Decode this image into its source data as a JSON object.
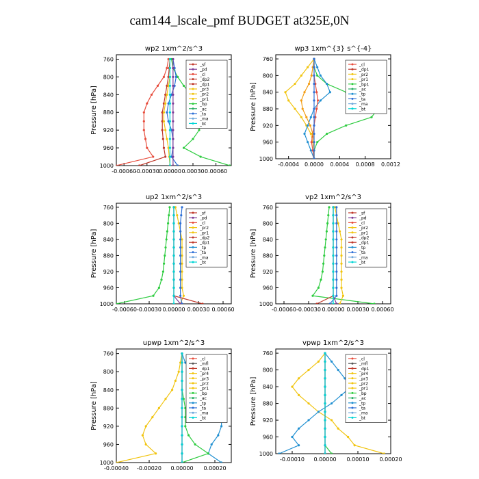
{
  "page_title": "cam144_lscale_pmf  BUDGET at325E,0N",
  "colors": {
    "sf": "#c0392b",
    "pd": "#7d3c98",
    "cl": "#e74c3c",
    "dp": "#c0392b",
    "pr": "#f1c40f",
    "bp": "#2ecc40",
    "ac": "#27ae60",
    "ta": "#2d6fd6",
    "tp": "#1f8fd1",
    "ma": "#6fa8dc",
    "bt": "#00d5d5",
    "mt": "#8e24aa"
  },
  "chart_data": [
    {
      "type": "line",
      "title": "wp2  1xm^2/s^3",
      "ylabel": "Pressure [hPa]",
      "ylim": [
        1000,
        750
      ],
      "yticks": [
        "760",
        "800",
        "840",
        "880",
        "920",
        "960",
        "1000"
      ],
      "xlim": [
        -0.0007,
        0.0008
      ],
      "xticks": [
        {
          "v": -0.0006,
          "label": "-0.00060"
        },
        {
          "v": -0.0003,
          "label": "-0.00030"
        },
        {
          "v": 0,
          "label": "0.00000"
        },
        {
          "v": 0.0003,
          "label": "0.00030"
        },
        {
          "v": 0.0006,
          "label": "0.00060"
        }
      ],
      "legend": [
        "_sf",
        "_pd",
        "_cl",
        "_dp2",
        "_dp1",
        "_pr3",
        "_pr2",
        "_pr1",
        "_bp",
        "_ac",
        "_ta",
        "_ma",
        "_bt"
      ],
      "pressure": [
        760,
        780,
        800,
        820,
        840,
        860,
        880,
        900,
        920,
        940,
        960,
        980,
        1000
      ],
      "series": [
        {
          "name": "_cl",
          "color": "#e74c3c",
          "values": [
            -2e-05,
            -4e-05,
            -8e-05,
            -0.00016,
            -0.00024,
            -0.0003,
            -0.00034,
            -0.00034,
            -0.00034,
            -0.00032,
            -0.0003,
            -0.00022,
            -0.0007
          ]
        },
        {
          "name": "_dp1",
          "color": "#c0392b",
          "values": [
            0,
            -1e-05,
            -2e-05,
            -4e-05,
            -6e-05,
            -8e-05,
            -0.0001,
            -0.0001,
            -0.0001,
            -9e-05,
            -8e-05,
            -6e-05,
            -0.0004
          ]
        },
        {
          "name": "_pr2",
          "color": "#f1c40f",
          "values": [
            0,
            0,
            0,
            -2e-05,
            -4e-05,
            -6e-05,
            -8e-05,
            -8e-05,
            -6e-05,
            -4e-05,
            -2e-05,
            -1e-05,
            0
          ]
        },
        {
          "name": "_bp",
          "color": "#2ecc40",
          "values": [
            2e-05,
            4e-05,
            0.0001,
            0.00018,
            0.00028,
            0.00036,
            0.0004,
            0.0004,
            0.00038,
            0.0003,
            0.00018,
            0.0004,
            0.00078
          ]
        },
        {
          "name": "_ta",
          "color": "#2d6fd6",
          "values": [
            4e-05,
            6e-05,
            8e-05,
            6e-05,
            2e-05,
            -2e-05,
            -4e-05,
            -2e-05,
            2e-05,
            4e-05,
            4e-05,
            2e-05,
            0.0001
          ]
        },
        {
          "name": "_pd",
          "color": "#7d3c98",
          "values": [
            4e-05,
            4e-05,
            4e-05,
            4e-05,
            4e-05,
            4e-05,
            4e-05,
            4e-05,
            4e-05,
            4e-05,
            4e-05,
            4e-05,
            4e-05
          ]
        },
        {
          "name": "_bt",
          "color": "#00d5d5",
          "values": [
            0,
            0,
            0,
            0,
            0,
            0,
            0,
            0,
            0,
            0,
            0,
            0,
            0
          ]
        }
      ]
    },
    {
      "type": "line",
      "title": "wp3  1xm^{3} s^{-4}",
      "ylabel": "Pressure [hPa]",
      "ylim": [
        1000,
        750
      ],
      "yticks": [
        "760",
        "800",
        "840",
        "880",
        "920",
        "960",
        "1000"
      ],
      "xlim": [
        -0.0006,
        0.0012
      ],
      "xticks": [
        {
          "v": -0.0004,
          "label": "-0.0004"
        },
        {
          "v": 0,
          "label": "0.0000"
        },
        {
          "v": 0.0004,
          "label": "0.0004"
        },
        {
          "v": 0.0008,
          "label": "0.0008"
        },
        {
          "v": 0.0012,
          "label": "0.0012"
        }
      ],
      "legend": [
        "_cl",
        "_dp1",
        "_pr2",
        "_pr1",
        "_bp1",
        "_ac",
        "_tp",
        "_ta",
        "_ma",
        "_bt"
      ],
      "pressure": [
        760,
        780,
        800,
        820,
        840,
        860,
        880,
        900,
        920,
        940,
        960,
        980,
        1000
      ],
      "series": [
        {
          "name": "_pr1",
          "color": "#f1c40f",
          "values": [
            0,
            -0.0001,
            -0.0002,
            -0.0003,
            -0.00045,
            -0.0004,
            -0.0003,
            -0.0002,
            -0.00012,
            -5e-05,
            -2e-05,
            0,
            0
          ]
        },
        {
          "name": "_bp1",
          "color": "#2ecc40",
          "values": [
            0,
            0,
            5e-05,
            0.0002,
            0.0005,
            0.0009,
            0.001,
            0.0009,
            0.0005,
            0.0002,
            5e-05,
            0,
            0
          ]
        },
        {
          "name": "_tp",
          "color": "#1f8fd1",
          "values": [
            0,
            5e-05,
            0.0001,
            0.0002,
            0.00025,
            0.0001,
            0,
            -5e-05,
            -0.0001,
            -0.00015,
            -0.0001,
            -5e-05,
            0
          ]
        },
        {
          "name": "_cl",
          "color": "#e74c3c",
          "values": [
            0,
            0,
            0,
            2e-05,
            4e-05,
            6e-05,
            4e-05,
            2e-05,
            0,
            -2e-05,
            -4e-05,
            -2e-05,
            0
          ]
        },
        {
          "name": "_pr2",
          "color": "#f39c12",
          "values": [
            0,
            -2e-05,
            -4e-05,
            -8e-05,
            -0.00015,
            -0.0002,
            -0.00018,
            -0.00012,
            -6e-05,
            -2e-05,
            0,
            0,
            0
          ]
        },
        {
          "name": "_ta",
          "color": "#2d6fd6",
          "values": [
            0,
            0,
            0,
            0,
            0,
            0,
            0,
            0,
            0,
            0,
            0,
            0,
            0
          ]
        }
      ]
    },
    {
      "type": "line",
      "title": "up2  1xm^2/s^3",
      "ylabel": "Pressure [hPa]",
      "ylim": [
        1000,
        750
      ],
      "yticks": [
        "760",
        "800",
        "840",
        "880",
        "920",
        "960",
        "1000"
      ],
      "xlim": [
        -0.0007,
        0.0007
      ],
      "xticks": [
        {
          "v": -0.0006,
          "label": "-0.00060"
        },
        {
          "v": -0.0003,
          "label": "-0.00030"
        },
        {
          "v": 0,
          "label": "0.00000"
        },
        {
          "v": 0.0003,
          "label": "0.00030"
        },
        {
          "v": 0.0006,
          "label": "0.00060"
        }
      ],
      "legend": [
        "_sf",
        "_pd",
        "_cl",
        "_pr2",
        "_pr1",
        "_dp2",
        "_dp1",
        "_tp",
        "_ta",
        "_ma",
        "_bt"
      ],
      "pressure": [
        760,
        780,
        800,
        820,
        840,
        860,
        880,
        900,
        920,
        940,
        960,
        980,
        1000
      ],
      "series": [
        {
          "name": "_bp",
          "color": "#2ecc40",
          "values": [
            -5e-05,
            -6e-05,
            -7e-05,
            -8e-05,
            -9e-05,
            -0.0001,
            -0.00011,
            -0.00012,
            -0.00013,
            -0.00015,
            -0.00018,
            -0.00025,
            -0.0007
          ]
        },
        {
          "name": "_pr2",
          "color": "#f1c40f",
          "values": [
            2e-05,
            4e-05,
            6e-05,
            8e-05,
            0.0001,
            0.0001,
            0.0001,
            0.0001,
            0.0001,
            0.0001,
            0.0001,
            0.00012,
            8e-05
          ]
        },
        {
          "name": "_ta",
          "color": "#2d6fd6",
          "values": [
            0.0001,
            9e-05,
            8e-05,
            8e-05,
            8e-05,
            8e-05,
            8e-05,
            8e-05,
            8e-05,
            8e-05,
            8e-05,
            8e-05,
            0.0001
          ]
        },
        {
          "name": "_pd",
          "color": "#7d3c98",
          "values": [
            0,
            0,
            0,
            0,
            0,
            0,
            0,
            0,
            0,
            0,
            0,
            0,
            8e-05
          ]
        },
        {
          "name": "_dp1",
          "color": "#c0392b",
          "values": [
            0,
            0,
            0,
            0,
            0,
            0,
            0,
            0,
            0,
            0,
            0,
            0,
            0.00035
          ]
        },
        {
          "name": "_bt",
          "color": "#00d5d5",
          "values": [
            0,
            0,
            0,
            0,
            0,
            0,
            0,
            0,
            0,
            0,
            0,
            0,
            0
          ]
        }
      ]
    },
    {
      "type": "line",
      "title": "vp2  1xm^2/s^3",
      "ylabel": "Pressure [hPa]",
      "ylim": [
        1000,
        750
      ],
      "yticks": [
        "760",
        "800",
        "840",
        "880",
        "920",
        "960",
        "1000"
      ],
      "xlim": [
        -0.0007,
        0.0007
      ],
      "xticks": [
        {
          "v": -0.0006,
          "label": "-0.00060"
        },
        {
          "v": -0.0003,
          "label": "-0.00030"
        },
        {
          "v": 0,
          "label": "0.00000"
        },
        {
          "v": 0.0003,
          "label": "0.00030"
        },
        {
          "v": 0.0006,
          "label": "0.00060"
        }
      ],
      "legend": [
        "_sf",
        "_pd",
        "_cl",
        "_pr2",
        "_pr1",
        "_dp2",
        "_dp1",
        "_tp",
        "_ta",
        "_ma",
        "_bt"
      ],
      "pressure": [
        760,
        780,
        800,
        820,
        840,
        860,
        880,
        900,
        920,
        940,
        960,
        980,
        1000
      ],
      "series": [
        {
          "name": "_bp",
          "color": "#2ecc40",
          "values": [
            -5e-05,
            -6e-05,
            -7e-05,
            -8e-05,
            -9e-05,
            -0.0001,
            -0.00011,
            -0.00012,
            -0.00013,
            -0.00015,
            -0.00018,
            -0.00025,
            0.0005
          ]
        },
        {
          "name": "_pr2",
          "color": "#f1c40f",
          "values": [
            2e-05,
            4e-05,
            6e-05,
            8e-05,
            0.0001,
            0.0001,
            0.0001,
            0.0001,
            0.0001,
            0.0001,
            0.0001,
            0.00012,
            8e-05
          ]
        },
        {
          "name": "_ta",
          "color": "#2d6fd6",
          "values": [
            4e-05,
            4e-05,
            4e-05,
            4e-05,
            4e-05,
            4e-05,
            4e-05,
            4e-05,
            4e-05,
            4e-05,
            4e-05,
            4e-05,
            -4e-05
          ]
        },
        {
          "name": "_pd",
          "color": "#7d3c98",
          "values": [
            0,
            0,
            0,
            0,
            0,
            0,
            0,
            0,
            0,
            0,
            0,
            0,
            4e-05
          ]
        },
        {
          "name": "_dp1",
          "color": "#c0392b",
          "values": [
            0,
            0,
            0,
            0,
            0,
            0,
            0,
            0,
            0,
            0,
            0,
            0,
            -0.0002
          ]
        },
        {
          "name": "_bt",
          "color": "#00d5d5",
          "values": [
            0,
            0,
            0,
            0,
            0,
            0,
            0,
            0,
            0,
            0,
            0,
            0,
            0
          ]
        }
      ]
    },
    {
      "type": "line",
      "title": "upwp  1xm^2/s^3",
      "ylabel": "Pressure [hPa]",
      "ylim": [
        1000,
        750
      ],
      "yticks": [
        "760",
        "800",
        "840",
        "880",
        "920",
        "960",
        "1000"
      ],
      "xlim": [
        -0.0004,
        0.0003
      ],
      "xticks": [
        {
          "v": -0.0004,
          "label": "-0.00040"
        },
        {
          "v": -0.0002,
          "label": "-0.00020"
        },
        {
          "v": 0,
          "label": "0.00000"
        },
        {
          "v": 0.0002,
          "label": "0.00020"
        }
      ],
      "legend": [
        "_cl",
        "_mfl",
        "_dp1",
        "_pr4",
        "_pr3",
        "_pr2",
        "_pr1",
        "_bp",
        "_ac",
        "_tp",
        "_ta",
        "_ma",
        "_bt"
      ],
      "pressure": [
        760,
        780,
        800,
        820,
        840,
        860,
        880,
        900,
        920,
        940,
        960,
        980,
        1000
      ],
      "series": [
        {
          "name": "_pr1",
          "color": "#f1c40f",
          "values": [
            0,
            -1e-05,
            -2e-05,
            -4e-05,
            -6e-05,
            -0.0001,
            -0.00014,
            -0.00018,
            -0.00022,
            -0.00024,
            -0.00022,
            -0.00016,
            -0.0004
          ]
        },
        {
          "name": "_tp",
          "color": "#1f8fd1",
          "values": [
            0,
            2e-05,
            6e-05,
            0.0001,
            0.00014,
            0.00018,
            0.00022,
            0.00024,
            0.00024,
            0.00022,
            0.00018,
            0.00016,
            0.00024
          ]
        },
        {
          "name": "_bp",
          "color": "#2ecc40",
          "values": [
            0,
            0,
            0,
            0,
            0,
            1e-05,
            2e-05,
            2e-05,
            2e-05,
            4e-05,
            8e-05,
            0.00016,
            0
          ]
        },
        {
          "name": "_cl",
          "color": "#e74c3c",
          "values": [
            0,
            0,
            0,
            0,
            0,
            0,
            0,
            0,
            0,
            0,
            0,
            0,
            0
          ]
        },
        {
          "name": "_mfl",
          "color": "#8e24aa",
          "values": [
            0,
            0,
            0,
            0,
            0,
            0,
            0,
            0,
            0,
            0,
            0,
            0,
            0
          ]
        },
        {
          "name": "_bt",
          "color": "#00d5d5",
          "values": [
            0,
            0,
            0,
            0,
            0,
            0,
            0,
            0,
            0,
            0,
            0,
            0,
            0
          ]
        }
      ]
    },
    {
      "type": "line",
      "title": "vpwp  1xm^2/s^3",
      "ylabel": "Pressure [hPa]",
      "ylim": [
        1000,
        750
      ],
      "yticks": [
        "760",
        "800",
        "840",
        "880",
        "920",
        "960",
        "1000"
      ],
      "xlim": [
        -0.00015,
        0.0002
      ],
      "xticks": [
        {
          "v": -0.0001,
          "label": "-0.00010"
        },
        {
          "v": 0,
          "label": "0.00000"
        },
        {
          "v": 0.0001,
          "label": "0.00010"
        },
        {
          "v": 0.0002,
          "label": "0.00020"
        }
      ],
      "legend": [
        "_cl",
        "_mfl",
        "_dp1",
        "_pr4",
        "_pr3",
        "_pr2",
        "_pr1",
        "_bp",
        "_ac",
        "_tp",
        "_ta",
        "_ma",
        "_bt"
      ],
      "pressure": [
        760,
        780,
        800,
        820,
        840,
        860,
        880,
        900,
        920,
        940,
        960,
        980,
        1000
      ],
      "series": [
        {
          "name": "_pr1",
          "color": "#f1c40f",
          "values": [
            0,
            -2e-05,
            -5e-05,
            -8e-05,
            -0.0001,
            -8e-05,
            -5e-05,
            -2e-05,
            2e-05,
            4e-05,
            7e-05,
            9e-05,
            0.00018
          ]
        },
        {
          "name": "_tp",
          "color": "#1f8fd1",
          "values": [
            0,
            2e-05,
            4e-05,
            6e-05,
            8e-05,
            5e-05,
            2e-05,
            -2e-05,
            -5e-05,
            -8e-05,
            -0.0001,
            -8e-05,
            -0.00014
          ]
        },
        {
          "name": "_bp",
          "color": "#2ecc40",
          "values": [
            0,
            0,
            0,
            0,
            0,
            0,
            0,
            0,
            0,
            0,
            0,
            0,
            2e-05
          ]
        },
        {
          "name": "_cl",
          "color": "#e74c3c",
          "values": [
            0,
            0,
            0,
            0,
            0,
            0,
            0,
            0,
            0,
            0,
            0,
            0,
            0
          ]
        },
        {
          "name": "_mfl",
          "color": "#8e24aa",
          "values": [
            0,
            0,
            0,
            0,
            0,
            0,
            0,
            0,
            0,
            0,
            0,
            0,
            0
          ]
        },
        {
          "name": "_bt",
          "color": "#00d5d5",
          "values": [
            0,
            0,
            0,
            0,
            0,
            0,
            0,
            0,
            0,
            0,
            0,
            0,
            0
          ]
        }
      ]
    }
  ]
}
